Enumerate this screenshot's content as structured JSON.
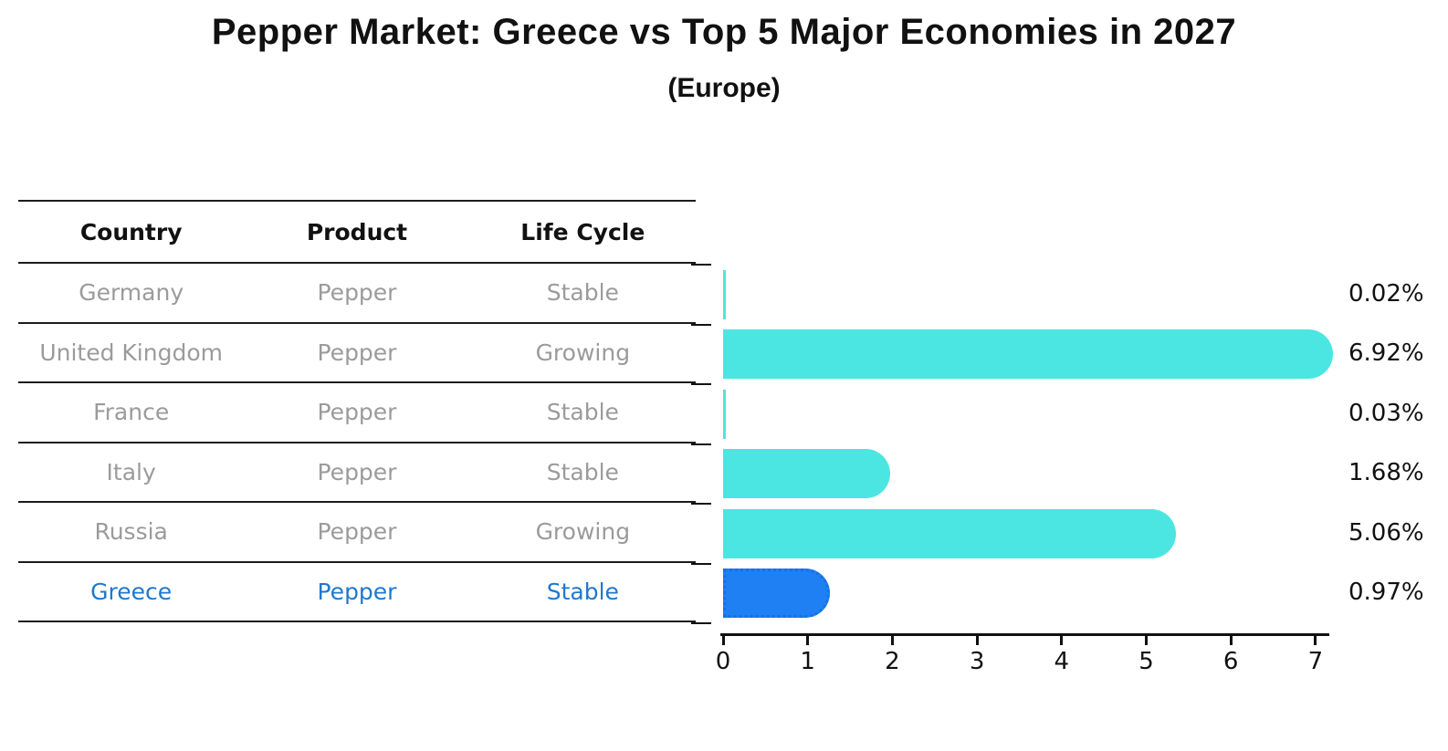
{
  "title": "Pepper Market: Greece vs Top 5 Major Economies in 2027",
  "subtitle": "(Europe)",
  "table": {
    "headers": [
      "Country",
      "Product",
      "Life Cycle"
    ],
    "rows": [
      {
        "country": "Germany",
        "product": "Pepper",
        "life_cycle": "Stable",
        "highlight": false
      },
      {
        "country": "United Kingdom",
        "product": "Pepper",
        "life_cycle": "Growing",
        "highlight": false
      },
      {
        "country": "France",
        "product": "Pepper",
        "life_cycle": "Stable",
        "highlight": false
      },
      {
        "country": "Italy",
        "product": "Pepper",
        "life_cycle": "Stable",
        "highlight": false
      },
      {
        "country": "Russia",
        "product": "Pepper",
        "life_cycle": "Growing",
        "highlight": false
      },
      {
        "country": "Greece",
        "product": "Pepper",
        "life_cycle": "Stable",
        "highlight": true
      }
    ]
  },
  "chart_data": {
    "type": "bar",
    "orientation": "horizontal",
    "title": "Pepper Market: Greece vs Top 5 Major Economies in 2027 (Europe)",
    "categories": [
      "Germany",
      "United Kingdom",
      "France",
      "Italy",
      "Russia",
      "Greece"
    ],
    "values": [
      0.02,
      6.92,
      0.03,
      1.68,
      5.06,
      0.97
    ],
    "value_labels": [
      "0.02%",
      "6.92%",
      "0.03%",
      "1.68%",
      "5.06%",
      "0.97%"
    ],
    "value_unit": "percent",
    "xlim": [
      0,
      7.3
    ],
    "xticks": [
      "0",
      "1",
      "2",
      "3",
      "4",
      "5",
      "6",
      "7"
    ],
    "grid": false,
    "legend": "none",
    "highlight_category": "Greece",
    "colors": {
      "bar_default": "#4be6e1",
      "bar_highlight": "#1e80f2",
      "bar_highlight_border": "#1670e8",
      "highlight_text": "#1f78ce",
      "table_text": "#9b9b9b",
      "axis_text": "#111111"
    }
  }
}
